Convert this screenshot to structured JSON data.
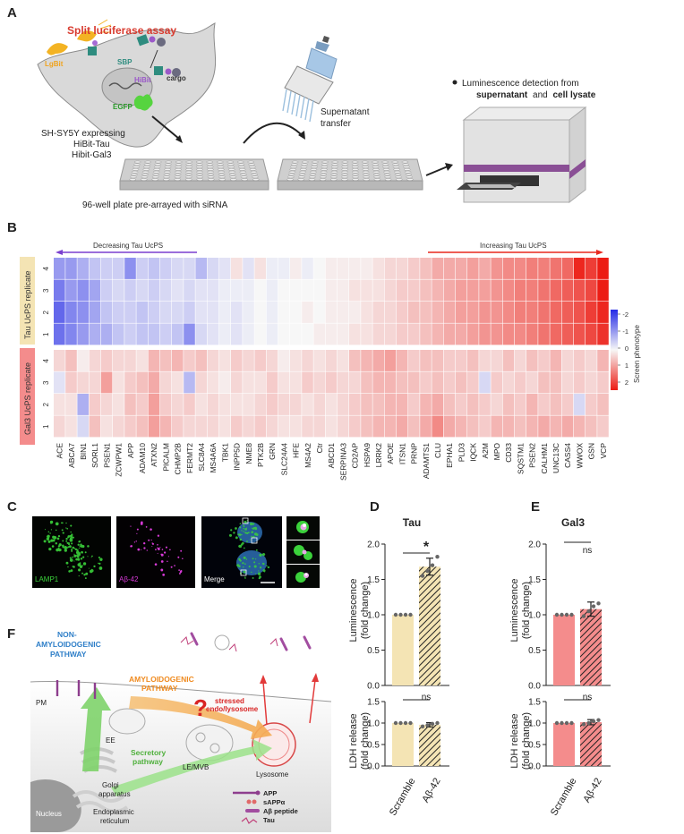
{
  "panels": {
    "a": "A",
    "b": "B",
    "c": "C",
    "d": "D",
    "e": "E",
    "f": "F"
  },
  "panel_a": {
    "title": "Split luciferase assay",
    "lgbit": "LgBit",
    "sbp": "SBP",
    "hibit": "HiBit",
    "cargo": "cargo",
    "egfp": "EGFP",
    "cell_line_1": "SH-SY5Y expressing",
    "cell_line_2": "HiBit-Tau",
    "cell_line_3": "Hibit-Gal3",
    "plate_label": "96-well plate pre-arrayed with siRNA",
    "transfer_1": "Supernatant",
    "transfer_2": "transfer",
    "detect_1": "Luminescence detection from",
    "detect_2a": "supernatant",
    "detect_2b": "and",
    "detect_2c": "cell lysate"
  },
  "panel_b": {
    "decreasing": "Decreasing Tau UcPS",
    "increasing": "Increasing Tau UcPS",
    "tau_group": "Tau UcPS replicate",
    "gal3_group": "Gal3 UcPS replicate",
    "replicates": [
      "4",
      "3",
      "2",
      "1"
    ],
    "colorbar_title": "Screen phenotype",
    "colorbar_ticks": [
      "-2",
      "-1",
      "0",
      "1",
      "2"
    ],
    "genes": [
      "ACE",
      "ABCA7",
      "BIN1",
      "SORL1",
      "PSEN1",
      "ZCWPW1",
      "APP",
      "ADAM10",
      "ATXN2",
      "PICALM",
      "CHMP2B",
      "FERMT2",
      "SLC8A4",
      "MS4A6A",
      "TBK1",
      "INPP5D",
      "NME8",
      "PTK2B",
      "GRN",
      "SLC24A4",
      "HFE",
      "MS4A2",
      "Ctr",
      "ABCD1",
      "SERPINA3",
      "CD2AP",
      "HSPA9",
      "LRRK2",
      "APOE",
      "ITSN1",
      "PRNP",
      "ADAMTS1",
      "CLU",
      "EPHA1",
      "PLD3",
      "IQCK",
      "A2M",
      "MPO",
      "CD33",
      "SQSTM1",
      "PSEN2",
      "CALHM1",
      "UNC13C",
      "CASS4",
      "WWOX",
      "GSN",
      "VCP"
    ]
  },
  "panel_c": {
    "lamp1": "LAMP1",
    "abeta": "Aβ-42",
    "merge": "Merge"
  },
  "panel_d": {
    "title": "Tau",
    "sig_top": "*",
    "sig_bottom": "ns",
    "ylabel_top_1": "Luminescence",
    "ylabel_top_2": "(fold change)",
    "ylabel_bottom_1": "LDH release",
    "ylabel_bottom_2": "(fold change)",
    "yticks_top": [
      "0.0",
      "0.5",
      "1.0",
      "1.5",
      "2.0"
    ],
    "yticks_bottom": [
      "0.0",
      "0.5",
      "1.0",
      "1.5"
    ],
    "xticks": [
      "Scramble",
      "Aβ-42"
    ]
  },
  "panel_e": {
    "title": "Gal3",
    "sig_top": "ns",
    "sig_bottom": "ns",
    "ylabel_top_1": "Luminescence",
    "ylabel_top_2": "(fold change)",
    "ylabel_bottom_1": "LDH release",
    "ylabel_bottom_2": "(fold change)",
    "yticks_top": [
      "0.0",
      "0.5",
      "1.0",
      "1.5",
      "2.0"
    ],
    "yticks_bottom": [
      "0.0",
      "0.5",
      "1.0",
      "1.5"
    ],
    "xticks": [
      "Scramble",
      "Aβ-42"
    ]
  },
  "panel_f": {
    "non_amyloid_1": "NON-",
    "non_amyloid_2": "AMYLOIDOGENIC",
    "non_amyloid_3": "PATHWAY",
    "amyloid_1": "AMYLOIDOGENIC",
    "amyloid_2": "PATHWAY",
    "stressed_1": "stressed",
    "stressed_2": "endo/lysosome",
    "pm": "PM",
    "ee": "EE",
    "secretory_1": "Secretory",
    "secretory_2": "pathway",
    "lemvb": "LE/MVB",
    "lysosome": "Lysosome",
    "golgi_1": "Golgi",
    "golgi_2": "apparatus",
    "nucleus": "Nucleus",
    "er_1": "Endoplasmic",
    "er_2": "reticulum",
    "legend_app": "APP",
    "legend_sapp": "sAPPα",
    "legend_abeta": "Aβ peptide",
    "legend_tau": "Tau",
    "question": "?"
  },
  "chart_data": [
    {
      "type": "heatmap",
      "title": "",
      "colorbar_label": "Screen phenotype",
      "range": [
        -2,
        2
      ],
      "categories": [
        "ACE",
        "ABCA7",
        "BIN1",
        "SORL1",
        "PSEN1",
        "ZCWPW1",
        "APP",
        "ADAM10",
        "ATXN2",
        "PICALM",
        "CHMP2B",
        "FERMT2",
        "SLC8A4",
        "MS4A6A",
        "TBK1",
        "INPP5D",
        "NME8",
        "PTK2B",
        "GRN",
        "SLC24A4",
        "HFE",
        "MS4A2",
        "Ctr",
        "ABCD1",
        "SERPINA3",
        "CD2AP",
        "HSPA9",
        "LRRK2",
        "APOE",
        "ITSN1",
        "PRNP",
        "ADAMTS1",
        "CLU",
        "EPHA1",
        "PLD3",
        "IQCK",
        "A2M",
        "MPO",
        "CD33",
        "SQSTM1",
        "PSEN2",
        "CALHM1",
        "UNC13C",
        "CASS4",
        "WWOX",
        "GSN",
        "VCP"
      ],
      "rows": [
        "Tau 4",
        "Tau 3",
        "Tau 2",
        "Tau 1",
        "Gal3 4",
        "Gal3 3",
        "Gal3 2",
        "Gal3 1"
      ],
      "values": [
        [
          -0.9,
          -0.9,
          -0.7,
          -0.5,
          -0.4,
          -0.4,
          -1.0,
          -0.4,
          -0.5,
          -0.4,
          -0.3,
          -0.3,
          -0.6,
          -0.3,
          -0.2,
          0.2,
          -0.2,
          0.2,
          -0.1,
          -0.1,
          0.1,
          -0.1,
          0.0,
          0.1,
          0.1,
          0.1,
          0.1,
          0.2,
          0.3,
          0.3,
          0.4,
          0.5,
          0.7,
          0.7,
          0.7,
          0.8,
          0.7,
          0.9,
          1.0,
          1.0,
          1.1,
          1.1,
          1.2,
          1.3,
          1.9,
          1.7,
          2.0
        ],
        [
          -1.2,
          -0.9,
          -1.0,
          -0.8,
          -0.4,
          -0.3,
          -0.4,
          -0.3,
          -0.4,
          -0.3,
          -0.2,
          -0.3,
          -0.2,
          -0.2,
          -0.1,
          -0.1,
          -0.1,
          0.0,
          -0.1,
          0.0,
          0.0,
          0.0,
          0.0,
          0.1,
          0.1,
          0.2,
          0.2,
          0.2,
          0.3,
          0.4,
          0.4,
          0.5,
          0.6,
          0.7,
          0.8,
          0.8,
          0.8,
          0.9,
          1.0,
          1.1,
          1.1,
          1.2,
          1.3,
          1.4,
          1.5,
          1.6,
          2.0
        ],
        [
          -1.4,
          -1.1,
          -1.0,
          -0.8,
          -0.5,
          -0.4,
          -0.4,
          -0.5,
          -0.4,
          -0.3,
          -0.3,
          -0.4,
          -0.2,
          -0.2,
          -0.1,
          -0.2,
          -0.1,
          0.0,
          -0.1,
          0.0,
          0.0,
          0.1,
          0.0,
          0.1,
          0.1,
          0.1,
          0.2,
          0.3,
          0.3,
          0.4,
          0.5,
          0.5,
          0.6,
          0.7,
          0.8,
          0.8,
          0.9,
          0.9,
          1.0,
          1.1,
          1.1,
          1.2,
          1.3,
          1.4,
          1.5,
          1.7,
          1.9
        ],
        [
          -1.3,
          -1.1,
          -0.9,
          -0.7,
          -0.7,
          -0.5,
          -0.4,
          -0.5,
          -0.5,
          -0.4,
          -0.5,
          -1.0,
          -0.3,
          -0.2,
          -0.1,
          -0.2,
          -0.1,
          0.0,
          -0.1,
          0.0,
          0.0,
          0.0,
          0.1,
          0.1,
          0.1,
          0.2,
          0.2,
          0.3,
          0.3,
          0.4,
          0.4,
          0.5,
          0.6,
          0.7,
          0.7,
          0.8,
          0.9,
          0.9,
          1.0,
          1.0,
          1.1,
          1.2,
          1.3,
          1.4,
          1.5,
          1.6,
          1.8
        ],
        [
          0.3,
          0.5,
          0.1,
          0.3,
          0.4,
          0.3,
          0.3,
          0.2,
          0.6,
          0.5,
          0.6,
          0.4,
          0.5,
          0.3,
          0.2,
          0.4,
          0.3,
          0.4,
          0.3,
          0.1,
          0.2,
          0.3,
          0.2,
          0.3,
          0.2,
          0.5,
          0.6,
          0.7,
          0.8,
          0.6,
          0.4,
          0.5,
          0.5,
          0.4,
          0.4,
          0.5,
          0.3,
          0.3,
          0.5,
          0.3,
          0.5,
          0.4,
          0.6,
          0.3,
          0.4,
          0.3,
          0.6
        ],
        [
          -0.2,
          0.4,
          0.3,
          0.3,
          0.8,
          0.2,
          0.4,
          0.5,
          0.7,
          0.3,
          0.2,
          -0.6,
          0.3,
          0.2,
          0.1,
          0.3,
          0.2,
          0.2,
          0.4,
          0.2,
          0.2,
          0.4,
          0.3,
          0.4,
          0.3,
          0.3,
          0.5,
          0.6,
          0.6,
          0.5,
          0.5,
          0.4,
          0.5,
          0.4,
          0.5,
          0.4,
          -0.3,
          0.4,
          0.3,
          0.4,
          0.3,
          0.5,
          0.5,
          0.3,
          0.4,
          0.3,
          0.4
        ],
        [
          0.2,
          0.2,
          -0.7,
          0.4,
          0.3,
          0.2,
          0.5,
          0.4,
          0.8,
          0.4,
          0.3,
          0.4,
          0.2,
          0.3,
          0.2,
          0.2,
          0.2,
          0.3,
          0.4,
          0.3,
          0.3,
          0.2,
          0.3,
          0.2,
          0.3,
          0.4,
          0.5,
          0.5,
          0.6,
          0.6,
          0.4,
          0.6,
          0.7,
          0.5,
          0.4,
          0.5,
          0.4,
          0.3,
          0.5,
          0.4,
          0.6,
          0.4,
          0.5,
          0.4,
          -0.3,
          0.4,
          0.5
        ],
        [
          0.3,
          0.2,
          -0.3,
          0.5,
          0.2,
          0.3,
          0.4,
          0.5,
          0.8,
          0.6,
          0.4,
          0.3,
          0.3,
          0.3,
          0.2,
          0.4,
          0.3,
          0.4,
          0.3,
          0.2,
          0.2,
          0.3,
          0.3,
          0.2,
          0.3,
          0.4,
          0.5,
          0.6,
          0.6,
          0.7,
          0.5,
          0.7,
          1.0,
          0.7,
          0.6,
          0.5,
          0.4,
          0.6,
          0.6,
          0.5,
          0.6,
          0.7,
          0.6,
          0.7,
          0.6,
          0.5,
          0.4
        ]
      ]
    },
    {
      "type": "bar",
      "title": "Tau",
      "ylabel": "Luminescence (fold change)",
      "categories": [
        "Scramble",
        "Aβ-42"
      ],
      "values": [
        1.0,
        1.68
      ],
      "error": [
        0.0,
        0.12
      ],
      "points": [
        [
          1.0,
          1.0,
          1.0,
          1.0
        ],
        [
          1.55,
          1.62,
          1.7,
          1.82
        ]
      ],
      "ylim": [
        0,
        2.0
      ],
      "significance": "*"
    },
    {
      "type": "bar",
      "title": "Tau",
      "ylabel": "LDH release (fold change)",
      "categories": [
        "Scramble",
        "Aβ-42"
      ],
      "values": [
        1.0,
        0.96
      ],
      "error": [
        0.0,
        0.05
      ],
      "points": [
        [
          1.0,
          1.0,
          1.0,
          1.0
        ],
        [
          0.92,
          0.95,
          0.98,
          1.0
        ]
      ],
      "ylim": [
        0,
        1.5
      ],
      "significance": "ns"
    },
    {
      "type": "bar",
      "title": "Gal3",
      "ylabel": "Luminescence (fold change)",
      "categories": [
        "Scramble",
        "Aβ-42"
      ],
      "values": [
        1.0,
        1.08
      ],
      "error": [
        0.0,
        0.1
      ],
      "points": [
        [
          1.0,
          1.0,
          1.0,
          1.0
        ],
        [
          0.98,
          1.05,
          1.12,
          1.16
        ]
      ],
      "ylim": [
        0,
        2.0
      ],
      "significance": "ns"
    },
    {
      "type": "bar",
      "title": "Gal3",
      "ylabel": "LDH release (fold change)",
      "categories": [
        "Scramble",
        "Aβ-42"
      ],
      "values": [
        1.0,
        1.02
      ],
      "error": [
        0.0,
        0.06
      ],
      "points": [
        [
          1.0,
          1.0,
          1.0,
          1.0
        ],
        [
          0.97,
          1.0,
          1.04,
          1.07
        ]
      ],
      "ylim": [
        0,
        1.5
      ],
      "significance": "ns"
    }
  ],
  "colors": {
    "blue_max": "#2329e6",
    "red_max": "#ec1c14",
    "tau_bar": "#f4e4b4",
    "gal3_bar": "#f48c8c",
    "tau_band": "#f4e4b4",
    "gal3_band": "#f48c8c",
    "title_red": "#d83a2e",
    "decreasing_purple": "#7a3fcf",
    "increasing_red": "#e8291f"
  }
}
